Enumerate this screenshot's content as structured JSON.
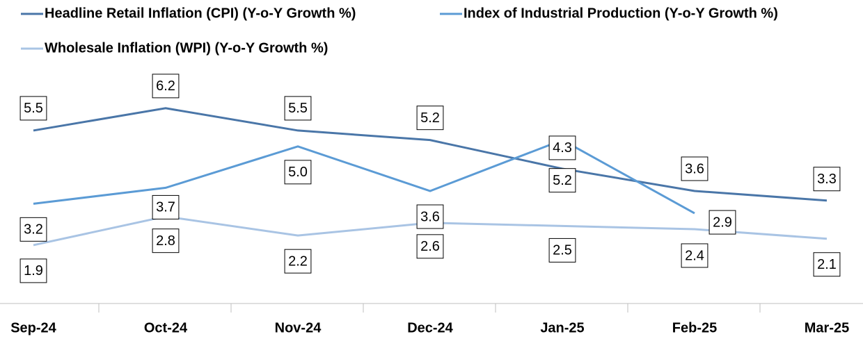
{
  "chart_data": {
    "type": "line",
    "categories": [
      "Sep-24",
      "Oct-24",
      "Nov-24",
      "Dec-24",
      "Jan-25",
      "Feb-25",
      "Mar-25"
    ],
    "series": [
      {
        "name": "Headline Retail Inflation (CPI) (Y-o-Y Growth %)",
        "color": "#4a76a8",
        "values": [
          5.5,
          6.2,
          5.5,
          5.2,
          4.3,
          3.6,
          3.3
        ],
        "value_labels": [
          "5.5",
          "6.2",
          "5.5",
          "5.2",
          "4.3",
          "3.6",
          "3.3"
        ]
      },
      {
        "name": "Index of Industrial Production (Y-o-Y Growth %)",
        "color": "#5b9bd5",
        "values": [
          3.2,
          3.7,
          5.0,
          3.6,
          5.2,
          2.9,
          null
        ],
        "value_labels": [
          "3.2",
          "3.7",
          "5.0",
          "3.6",
          "5.2",
          "2.9",
          null
        ]
      },
      {
        "name": "Wholesale Inflation (WPI) (Y-o-Y Growth %)",
        "color": "#a9c4e4",
        "values": [
          1.9,
          2.8,
          2.2,
          2.6,
          2.5,
          2.4,
          2.1
        ],
        "value_labels": [
          "1.9",
          "2.8",
          "2.2",
          "2.6",
          "2.5",
          "2.4",
          "2.1"
        ]
      }
    ],
    "ylim": [
      0,
      9.6
    ],
    "legend": "top"
  }
}
